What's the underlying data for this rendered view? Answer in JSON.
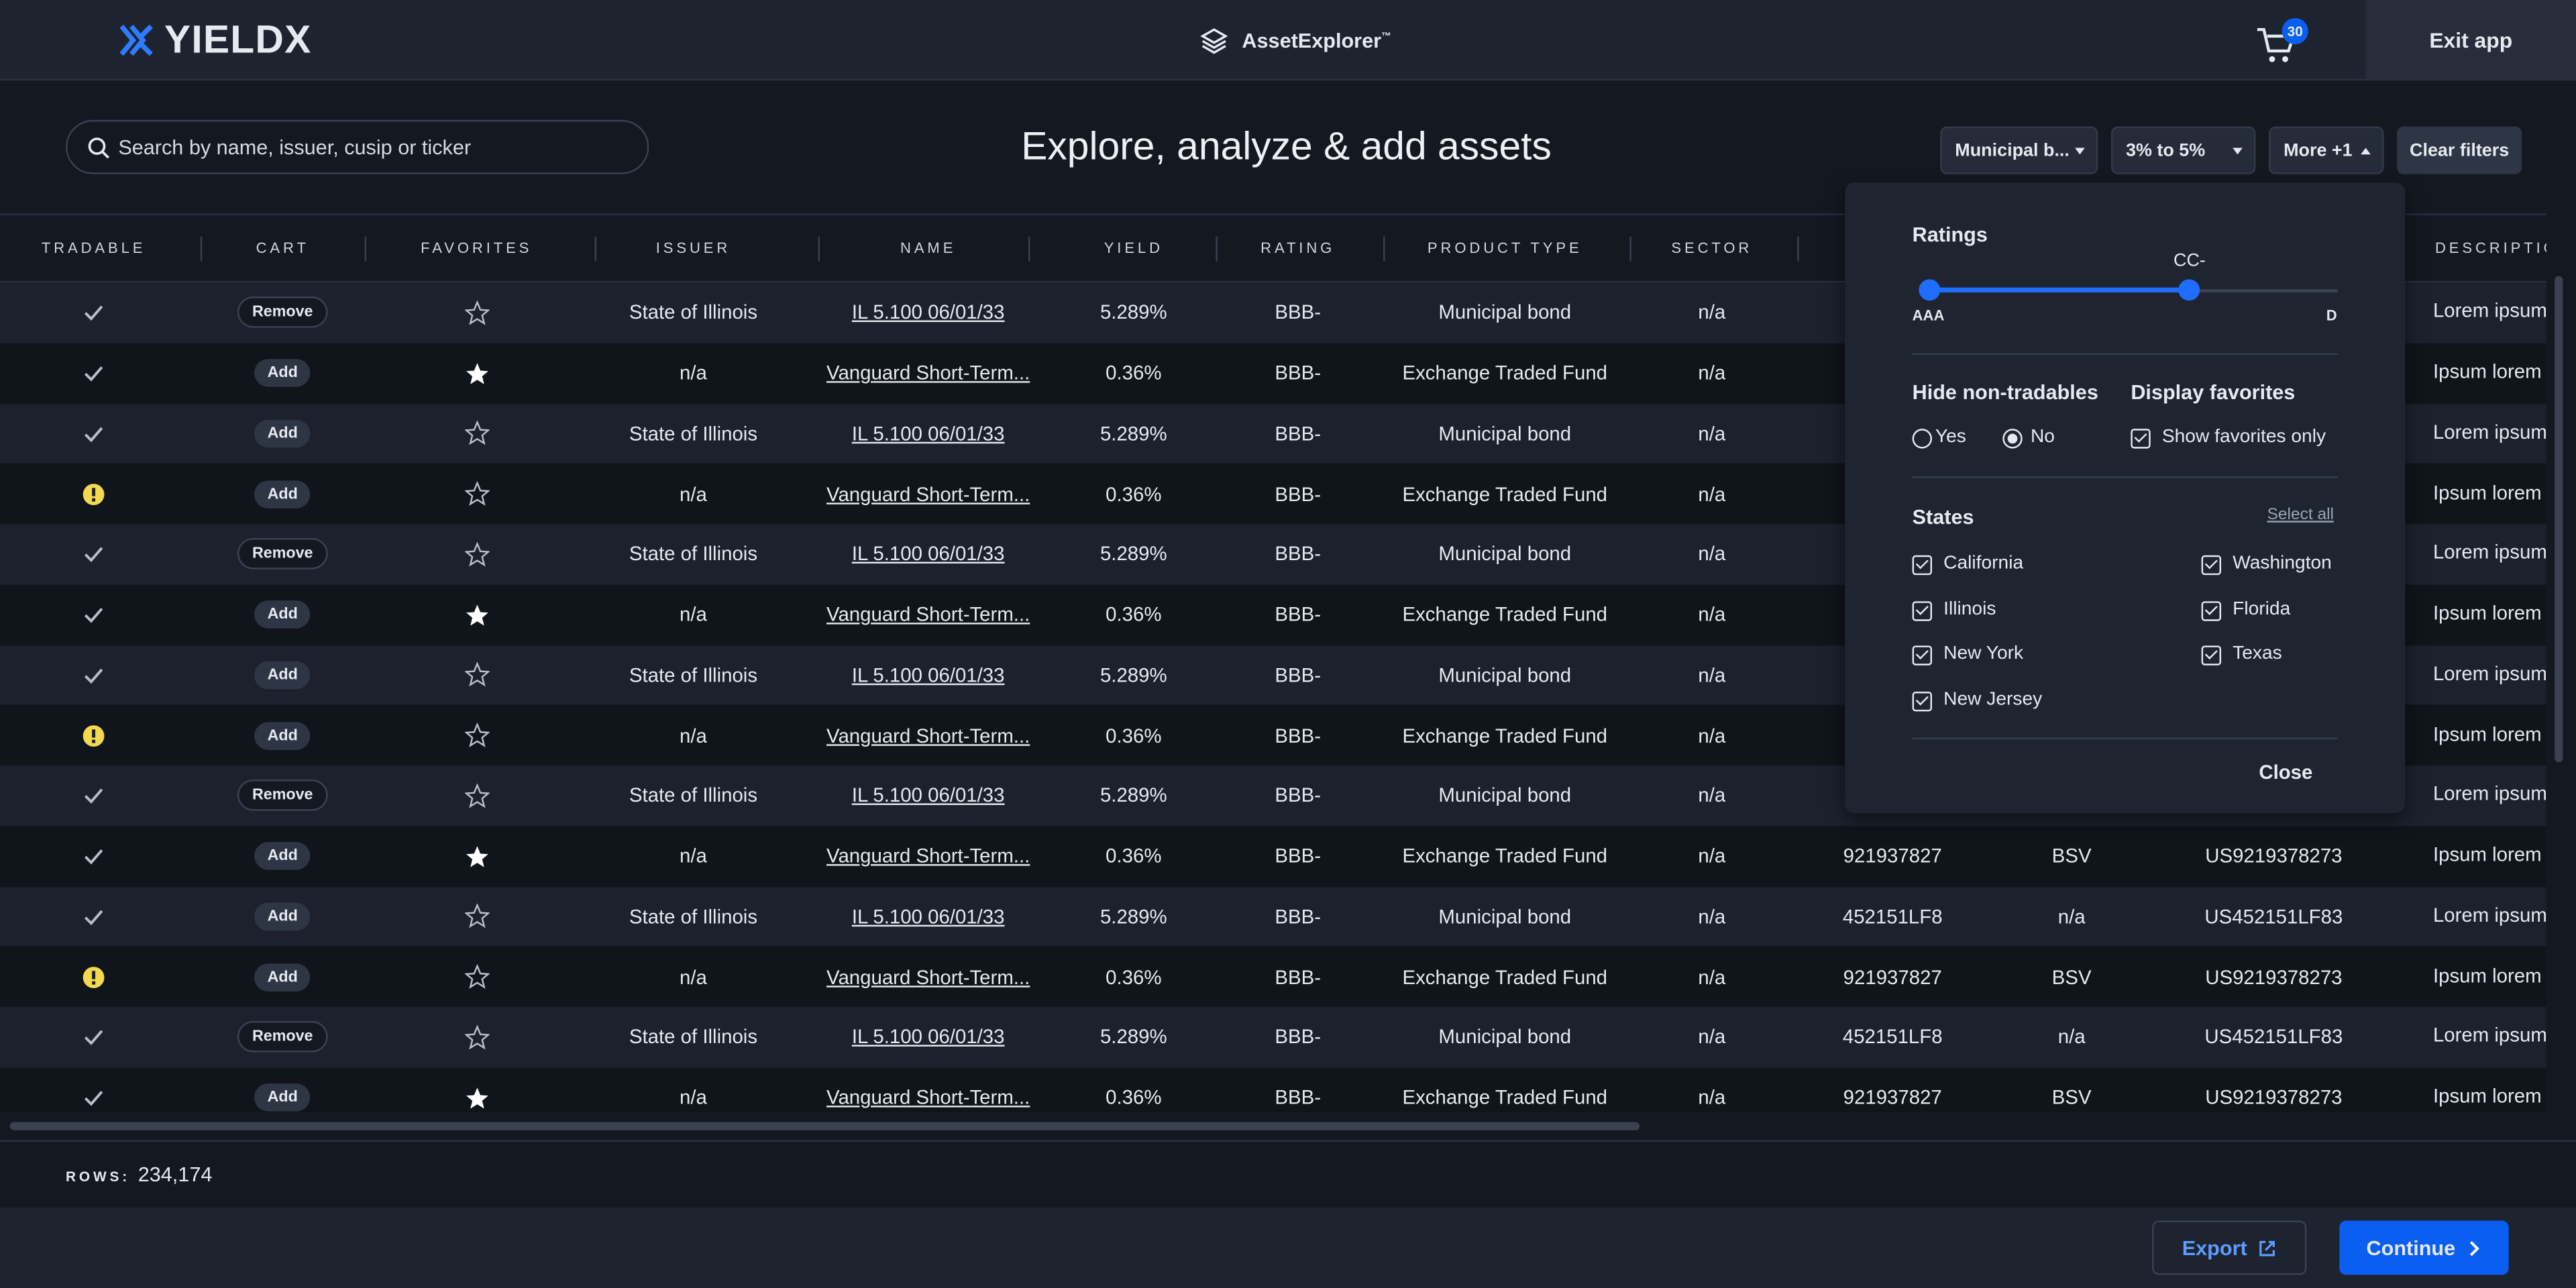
{
  "header": {
    "logo": "YIELDX",
    "app_name": "AssetExplorer",
    "app_mark": "™",
    "cart_count": "30",
    "exit": "Exit app"
  },
  "toolbar": {
    "search_placeholder": "Search by name, issuer, cusip or ticker",
    "heading": "Explore, analyze & add assets",
    "filters": [
      "Municipal b...",
      "3% to 5%",
      "More +1"
    ],
    "clear": "Clear filters"
  },
  "table": {
    "headers": [
      "TRADABLE",
      "CART",
      "FAVORITES",
      "ISSUER",
      "NAME",
      "YIELD",
      "RATING",
      "PRODUCT TYPE",
      "SECTOR",
      "DESCRIPTION"
    ],
    "rows": [
      {
        "tradable": "ok",
        "cart": "Remove",
        "favorite": false,
        "issuer": "State of Illinois",
        "name": "IL 5.100 06/01/33",
        "yield": "5.289%",
        "rating": "BBB-",
        "product_type": "Municipal bond",
        "sector": "n/a",
        "description": "Lorem ipsum"
      },
      {
        "tradable": "ok",
        "cart": "Add",
        "favorite": true,
        "issuer": "n/a",
        "name": "Vanguard Short-Term...",
        "yield": "0.36%",
        "rating": "BBB-",
        "product_type": "Exchange Traded Fund",
        "sector": "n/a",
        "description": "Ipsum lorem"
      },
      {
        "tradable": "ok",
        "cart": "Add",
        "favorite": false,
        "issuer": "State of Illinois",
        "name": "IL 5.100 06/01/33",
        "yield": "5.289%",
        "rating": "BBB-",
        "product_type": "Municipal bond",
        "sector": "n/a",
        "description": "Lorem ipsum"
      },
      {
        "tradable": "warning",
        "cart": "Add",
        "favorite": false,
        "issuer": "n/a",
        "name": "Vanguard Short-Term...",
        "yield": "0.36%",
        "rating": "BBB-",
        "product_type": "Exchange Traded Fund",
        "sector": "n/a",
        "description": "Ipsum lorem"
      },
      {
        "tradable": "ok",
        "cart": "Remove",
        "favorite": false,
        "issuer": "State of Illinois",
        "name": "IL 5.100 06/01/33",
        "yield": "5.289%",
        "rating": "BBB-",
        "product_type": "Municipal bond",
        "sector": "n/a",
        "description": "Lorem ipsum"
      },
      {
        "tradable": "ok",
        "cart": "Add",
        "favorite": true,
        "issuer": "n/a",
        "name": "Vanguard Short-Term...",
        "yield": "0.36%",
        "rating": "BBB-",
        "product_type": "Exchange Traded Fund",
        "sector": "n/a",
        "description": "Ipsum lorem"
      },
      {
        "tradable": "ok",
        "cart": "Add",
        "favorite": false,
        "issuer": "State of Illinois",
        "name": "IL 5.100 06/01/33",
        "yield": "5.289%",
        "rating": "BBB-",
        "product_type": "Municipal bond",
        "sector": "n/a",
        "description": "Lorem ipsum"
      },
      {
        "tradable": "warning",
        "cart": "Add",
        "favorite": false,
        "issuer": "n/a",
        "name": "Vanguard Short-Term...",
        "yield": "0.36%",
        "rating": "BBB-",
        "product_type": "Exchange Traded Fund",
        "sector": "n/a",
        "description": "Ipsum lorem"
      },
      {
        "tradable": "ok",
        "cart": "Remove",
        "favorite": false,
        "issuer": "State of Illinois",
        "name": "IL 5.100 06/01/33",
        "yield": "5.289%",
        "rating": "BBB-",
        "product_type": "Municipal bond",
        "sector": "n/a",
        "description": "Lorem ipsum"
      },
      {
        "tradable": "ok",
        "cart": "Add",
        "favorite": true,
        "issuer": "n/a",
        "name": "Vanguard Short-Term...",
        "yield": "0.36%",
        "rating": "BBB-",
        "product_type": "Exchange Traded Fund",
        "sector": "n/a",
        "cusip": "921937827",
        "ticker": "BSV",
        "isin": "US9219378273",
        "description": "Ipsum lorem"
      },
      {
        "tradable": "ok",
        "cart": "Add",
        "favorite": false,
        "issuer": "State of Illinois",
        "name": "IL 5.100 06/01/33",
        "yield": "5.289%",
        "rating": "BBB-",
        "product_type": "Municipal bond",
        "sector": "n/a",
        "cusip": "452151LF8",
        "ticker": "n/a",
        "isin": "US452151LF83",
        "description": "Lorem ipsum"
      },
      {
        "tradable": "warning",
        "cart": "Add",
        "favorite": false,
        "issuer": "n/a",
        "name": "Vanguard Short-Term...",
        "yield": "0.36%",
        "rating": "BBB-",
        "product_type": "Exchange Traded Fund",
        "sector": "n/a",
        "cusip": "921937827",
        "ticker": "BSV",
        "isin": "US9219378273",
        "description": "Ipsum lorem"
      },
      {
        "tradable": "ok",
        "cart": "Remove",
        "favorite": false,
        "issuer": "State of Illinois",
        "name": "IL 5.100 06/01/33",
        "yield": "5.289%",
        "rating": "BBB-",
        "product_type": "Municipal bond",
        "sector": "n/a",
        "cusip": "452151LF8",
        "ticker": "n/a",
        "isin": "US452151LF83",
        "description": "Lorem ipsum"
      },
      {
        "tradable": "ok",
        "cart": "Add",
        "favorite": true,
        "issuer": "n/a",
        "name": "Vanguard Short-Term...",
        "yield": "0.36%",
        "rating": "BBB-",
        "product_type": "Exchange Traded Fund",
        "sector": "n/a",
        "cusip": "921937827",
        "ticker": "BSV",
        "isin": "US9219378273",
        "description": "Ipsum lorem"
      }
    ]
  },
  "filter_panel": {
    "ratings_title": "Ratings",
    "rating_selected": "CC-",
    "rating_min": "AAA",
    "rating_max": "D",
    "hide_title": "Hide non-tradables",
    "hide_options": [
      "Yes",
      "No"
    ],
    "favorites_title": "Display favorites",
    "favorites_option": "Show favorites only",
    "states_title": "States",
    "select_all": "Select all",
    "states": [
      "California",
      "Washington",
      "Illinois",
      "Florida",
      "New York",
      "Texas",
      "New Jersey"
    ],
    "close": "Close"
  },
  "footer": {
    "rows_label": "ROWS:",
    "rows_count": "234,174",
    "export": "Export",
    "continue": "Continue"
  }
}
